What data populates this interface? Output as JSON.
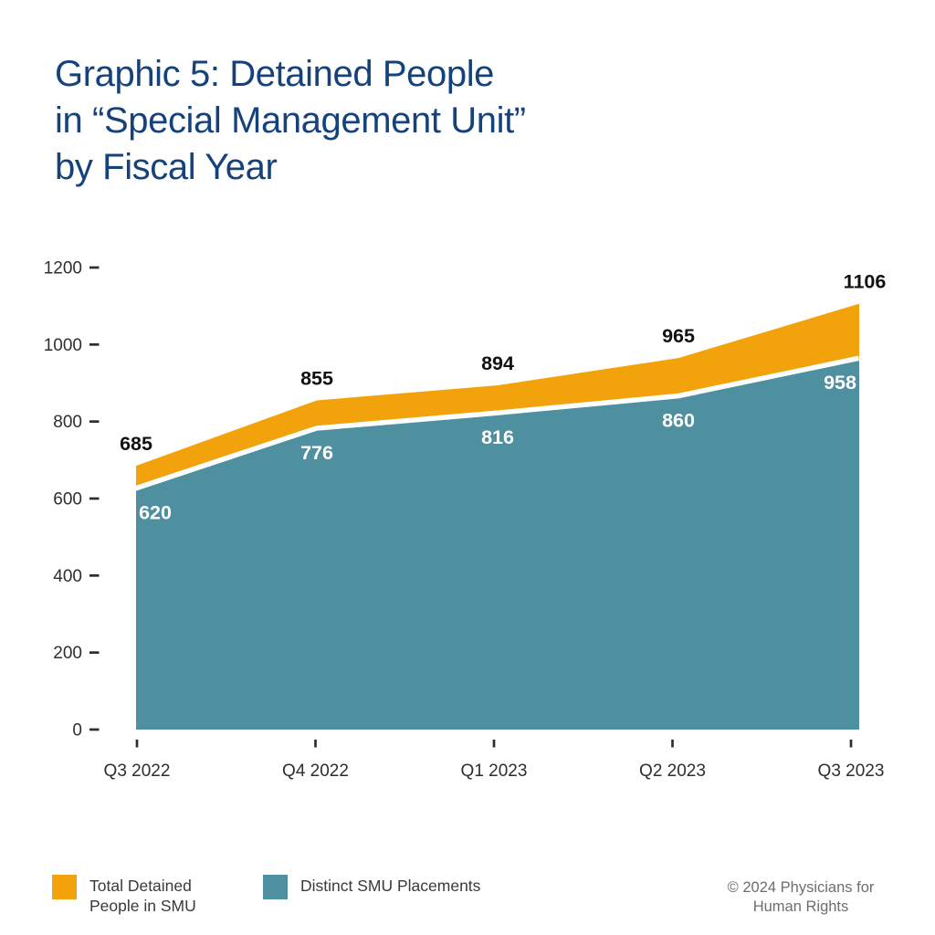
{
  "page": {
    "background": "#ffffff"
  },
  "title": {
    "lines": [
      "Graphic 5: Detained People",
      "in “Special Management Unit”",
      "by Fiscal Year"
    ],
    "color": "#16427C"
  },
  "chart_data": {
    "type": "area",
    "title": "Graphic 5: Detained People in “Special Management Unit” by Fiscal Year",
    "categories": [
      "Q3 2022",
      "Q4 2022",
      "Q1 2023",
      "Q2 2023",
      "Q3 2023"
    ],
    "series": [
      {
        "name": "Total Detained People in SMU",
        "values": [
          685,
          855,
          894,
          965,
          1106
        ],
        "color": "#F2A30C",
        "label_color": "#111111"
      },
      {
        "name": "Distinct SMU Placements",
        "values": [
          620,
          776,
          816,
          860,
          958
        ],
        "color": "#4E8FA0",
        "label_color": "#ffffff"
      }
    ],
    "xlabel": "",
    "ylabel": "",
    "ylim": [
      0,
      1200
    ],
    "yticks": [
      0,
      200,
      400,
      600,
      800,
      1000,
      1200
    ],
    "grid": false,
    "legend_position": "bottom",
    "axis_text_color": "#2e2e2e",
    "separator_color": "#ffffff"
  },
  "legend": {
    "items": [
      {
        "color": "#F2A30C",
        "label_lines": [
          "Total Detained",
          "People in SMU"
        ]
      },
      {
        "color": "#4E8FA0",
        "label_lines": [
          "Distinct SMU Placements"
        ]
      }
    ]
  },
  "footer": {
    "copyright_lines": [
      "© 2024 Physicians for",
      "Human Rights"
    ]
  }
}
